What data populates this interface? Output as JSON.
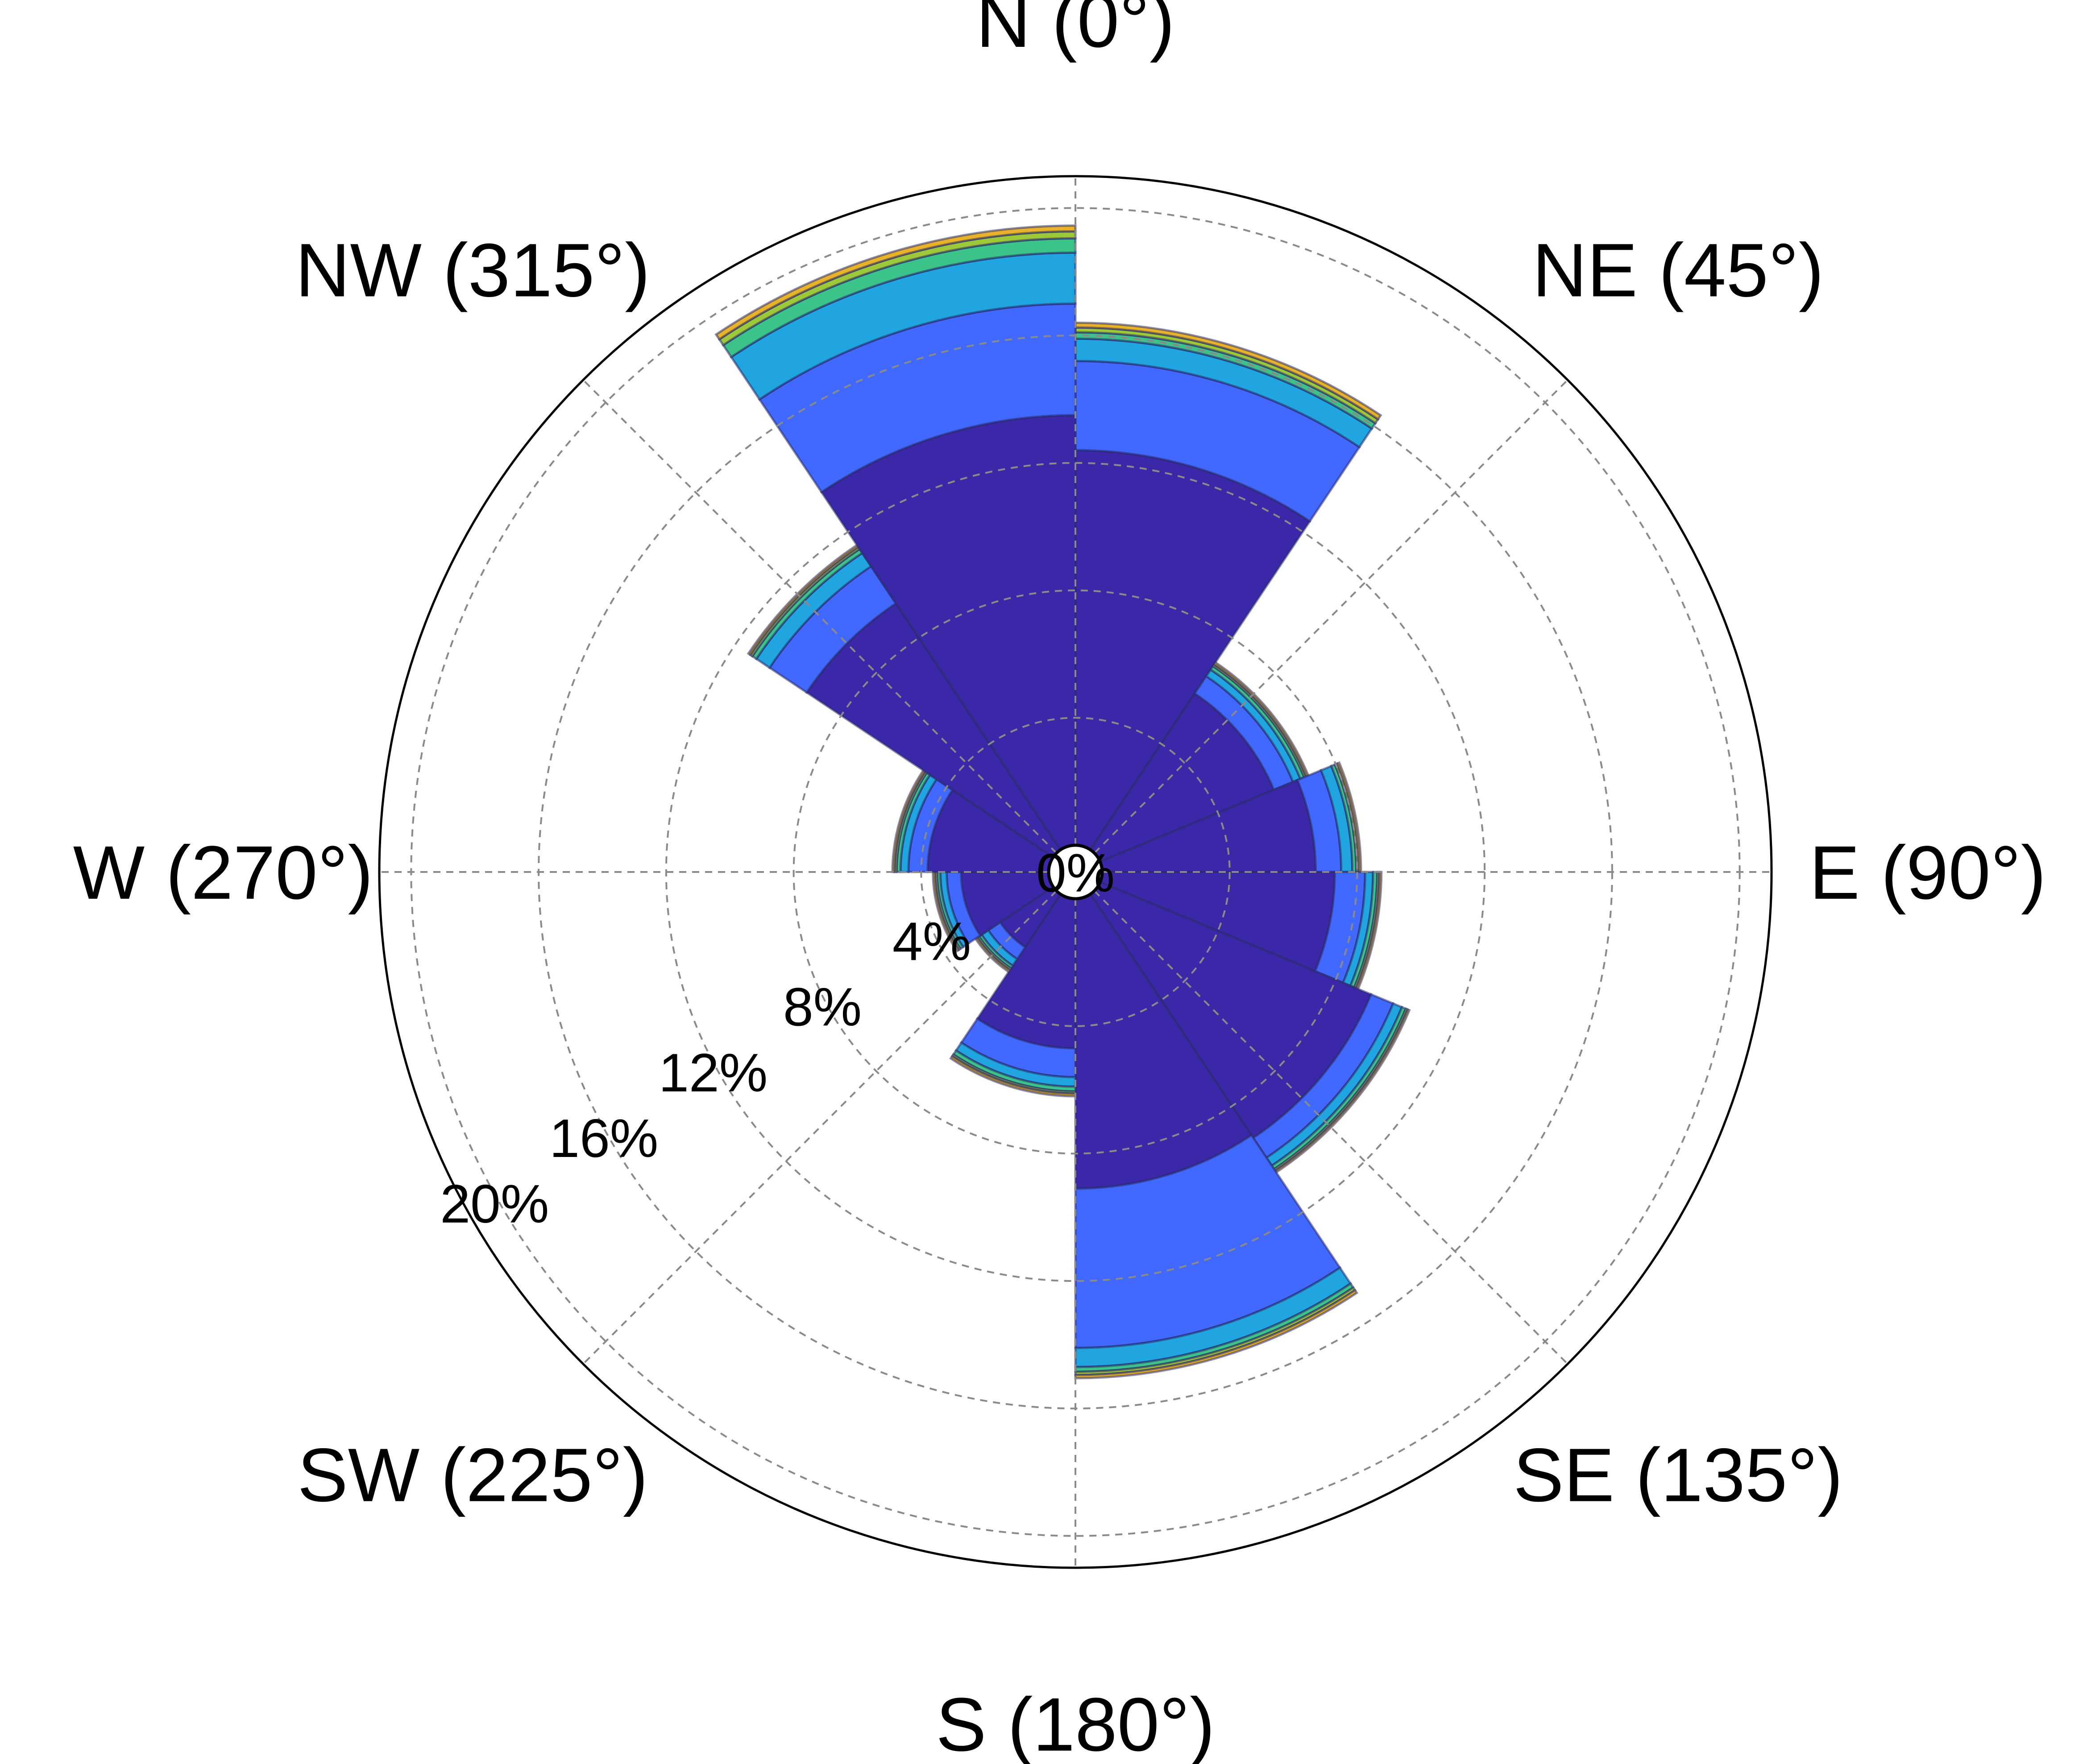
{
  "chart_data": {
    "type": "windrose",
    "title": "",
    "directions": [
      {
        "label": "N (0°)",
        "angle": 0
      },
      {
        "label": "NE (45°)",
        "angle": 45
      },
      {
        "label": "E (90°)",
        "angle": 90
      },
      {
        "label": "SE (135°)",
        "angle": 135
      },
      {
        "label": "S (180°)",
        "angle": 180
      },
      {
        "label": "SW (225°)",
        "angle": 225
      },
      {
        "label": "W (270°)",
        "angle": 270
      },
      {
        "label": "NW (315°)",
        "angle": 315
      }
    ],
    "radial_ticks": [
      0,
      4,
      8,
      12,
      16,
      20
    ],
    "radial_tick_labels": [
      "0%",
      "4%",
      "8%",
      "12%",
      "16%",
      "20%"
    ],
    "rlim": [
      0,
      21
    ],
    "grid": true,
    "bin_colors": [
      "#3a28a8",
      "#4169ff",
      "#21a5e0",
      "#3cc38a",
      "#9dc83a",
      "#e8b32a"
    ],
    "sectors": [
      {
        "start": 0,
        "end": 33.75,
        "cumulative": [
          12.4,
          15.2,
          15.9,
          16.1,
          16.25,
          16.4
        ]
      },
      {
        "start": 33.75,
        "end": 67.5,
        "cumulative": [
          5.9,
          6.55,
          6.8,
          6.93,
          7.0,
          7.07
        ]
      },
      {
        "start": 67.5,
        "end": 90,
        "cumulative": [
          6.7,
          7.5,
          7.85,
          7.97,
          8.05,
          8.12
        ]
      },
      {
        "start": 90,
        "end": 112.5,
        "cumulative": [
          7.3,
          8.25,
          8.5,
          8.63,
          8.7,
          8.76
        ]
      },
      {
        "start": 112.5,
        "end": 146.25,
        "cumulative": [
          9.2,
          9.95,
          10.25,
          10.38,
          10.45,
          10.5
        ]
      },
      {
        "start": 146.25,
        "end": 180,
        "cumulative": [
          9.1,
          14.1,
          14.7,
          14.85,
          14.95,
          15.05
        ]
      },
      {
        "start": 180,
        "end": 213.75,
        "cumulative": [
          4.7,
          5.6,
          5.9,
          6.05,
          6.12,
          6.2
        ]
      },
      {
        "start": 213.75,
        "end": 236.25,
        "cumulative": [
          2.0,
          2.45,
          2.7,
          2.8,
          2.87,
          2.93
        ]
      },
      {
        "start": 236.25,
        "end": 270,
        "cumulative": [
          2.75,
          3.2,
          3.4,
          3.5,
          3.57,
          3.63
        ]
      },
      {
        "start": 270,
        "end": 303.75,
        "cumulative": [
          3.8,
          4.4,
          4.65,
          4.77,
          4.84,
          4.9
        ]
      },
      {
        "start": 303.75,
        "end": 326.25,
        "cumulative": [
          9.3,
          10.7,
          11.2,
          11.35,
          11.43,
          11.5
        ]
      },
      {
        "start": 326.25,
        "end": 360,
        "cumulative": [
          13.5,
          17.0,
          18.6,
          19.05,
          19.27,
          19.45
        ]
      }
    ]
  }
}
